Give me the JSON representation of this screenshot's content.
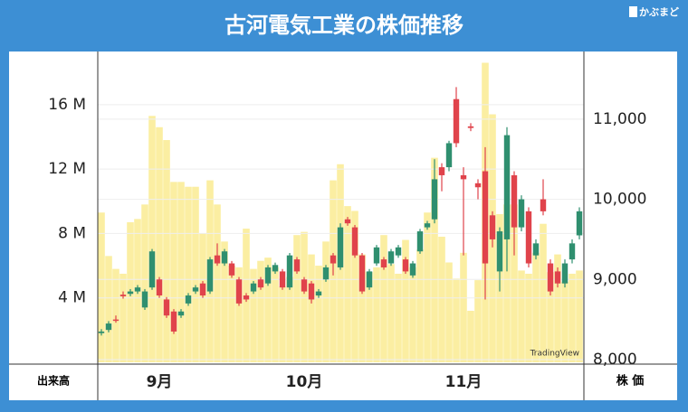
{
  "chart_data": {
    "type": "candlestick",
    "title": "古河電気工業の株価推移",
    "logo": "かぶまど",
    "watermark": "TradingView",
    "volume_label": "出来高",
    "price_label": "株 価",
    "categories": [
      null,
      null,
      null,
      null,
      null,
      null,
      null,
      null,
      "9月",
      null,
      null,
      null,
      null,
      null,
      null,
      null,
      null,
      null,
      null,
      null,
      null,
      null,
      null,
      null,
      null,
      null,
      null,
      null,
      "10月",
      null,
      null,
      null,
      null,
      null,
      null,
      null,
      null,
      null,
      null,
      null,
      null,
      null,
      null,
      null,
      null,
      null,
      null,
      null,
      null,
      null,
      "11月",
      null,
      null,
      null,
      null,
      null,
      null,
      null,
      null,
      null,
      null,
      null,
      null,
      null,
      null,
      null,
      null
    ],
    "up_color": "#2f8f6f",
    "down_color": "#e0434b",
    "volume_color": "#fbeea2",
    "open": [
      8330,
      8370,
      8500,
      8810,
      8820,
      8850,
      8650,
      8900,
      9000,
      8750,
      8600,
      8550,
      8700,
      8850,
      8950,
      8850,
      9300,
      9200,
      9200,
      9000,
      8800,
      8850,
      9000,
      8950,
      9100,
      9100,
      8900,
      9250,
      9000,
      8950,
      8800,
      9000,
      9300,
      9150,
      9750,
      9650,
      9300,
      8900,
      9200,
      9250,
      9200,
      9300,
      9250,
      9050,
      9350,
      9650,
      9750,
      10400,
      10400,
      11250,
      10300,
      10910,
      10200,
      10350,
      9800,
      9100,
      9500,
      10300,
      9650,
      9850,
      9300,
      10000,
      9200,
      9100,
      8950,
      9250,
      9550
    ],
    "high": [
      8380,
      8480,
      8550,
      8850,
      8880,
      8930,
      8880,
      9380,
      9030,
      8780,
      8630,
      8630,
      8830,
      8930,
      8980,
      9280,
      9450,
      9380,
      9230,
      9030,
      8830,
      8980,
      9030,
      9180,
      9210,
      9130,
      9330,
      9280,
      9030,
      8980,
      8880,
      9180,
      9330,
      9700,
      9780,
      9680,
      9330,
      9130,
      9430,
      9280,
      9380,
      9430,
      9280,
      9230,
      9630,
      9730,
      10500,
      10450,
      10730,
      11400,
      10400,
      10950,
      10250,
      10650,
      9850,
      9650,
      10900,
      10350,
      10050,
      9900,
      9500,
      10250,
      9250,
      9150,
      9250,
      9500,
      9900
    ],
    "low": [
      8300,
      8340,
      8460,
      8760,
      8790,
      8820,
      8620,
      8870,
      8770,
      8520,
      8320,
      8520,
      8670,
      8820,
      8770,
      8820,
      9170,
      9170,
      9020,
      8670,
      8720,
      8820,
      8870,
      8920,
      9070,
      8870,
      8870,
      9070,
      8820,
      8700,
      8770,
      8970,
      9050,
      9120,
      9670,
      9270,
      8820,
      8870,
      9170,
      9120,
      9170,
      9270,
      9070,
      9020,
      9320,
      9620,
      9700,
      10100,
      10350,
      10650,
      9300,
      10850,
      10000,
      8750,
      9400,
      8850,
      9100,
      9300,
      9600,
      9150,
      9250,
      9800,
      8800,
      8900,
      8900,
      9200,
      9500
    ],
    "close": [
      8350,
      8450,
      8490,
      8790,
      8850,
      8900,
      8850,
      9350,
      8800,
      8550,
      8350,
      8600,
      8800,
      8900,
      8800,
      9250,
      9200,
      9350,
      9050,
      8700,
      8750,
      8950,
      8900,
      9150,
      9180,
      8900,
      9300,
      9100,
      8850,
      8750,
      8850,
      9150,
      9200,
      9650,
      9700,
      9300,
      8850,
      9100,
      9400,
      9150,
      9350,
      9400,
      9100,
      9200,
      9600,
      9700,
      10250,
      10300,
      10700,
      10700,
      10250,
      10890,
      10150,
      9200,
      9500,
      9600,
      10800,
      9650,
      10000,
      9200,
      9450,
      9850,
      8850,
      8950,
      9200,
      9450,
      9850
    ],
    "volume": [
      9.3,
      6.6,
      5.8,
      5.5,
      8.7,
      8.9,
      9.8,
      15.3,
      14.6,
      13.8,
      11.2,
      11.2,
      10.9,
      10.9,
      8.0,
      11.3,
      9.8,
      7.5,
      6.0,
      5.9,
      8.3,
      5.8,
      6.3,
      6.5,
      5.9,
      4.7,
      5.3,
      7.9,
      8.1,
      6.7,
      6.0,
      7.5,
      11.3,
      12.3,
      9.7,
      9.4,
      6.7,
      5.6,
      5.9,
      7.9,
      6.1,
      5.5,
      7.6,
      5.9,
      7.0,
      9.3,
      12.7,
      7.8,
      6.2,
      5.2,
      6.8,
      3.2,
      5.1,
      18.6,
      15.4,
      9.2,
      9.8,
      9.8,
      5.7,
      5.5,
      6.8,
      8.6,
      5.6,
      6.7,
      5.0,
      5.5,
      5.7
    ],
    "ylim": [
      0,
      19.3
    ],
    "yticks": [
      {
        "value": 4,
        "label": "4 M"
      },
      {
        "value": 8,
        "label": "8 M"
      },
      {
        "value": 12,
        "label": "12 M"
      },
      {
        "value": 16,
        "label": "16 M"
      }
    ],
    "y2lim": [
      7966,
      11844
    ],
    "y2ticks": [
      {
        "value": 8000,
        "label": "8,000"
      },
      {
        "value": 9000,
        "label": "9,000"
      },
      {
        "value": 10000,
        "label": "10,000"
      },
      {
        "value": 11000,
        "label": "11,000"
      }
    ],
    "grid": true
  }
}
